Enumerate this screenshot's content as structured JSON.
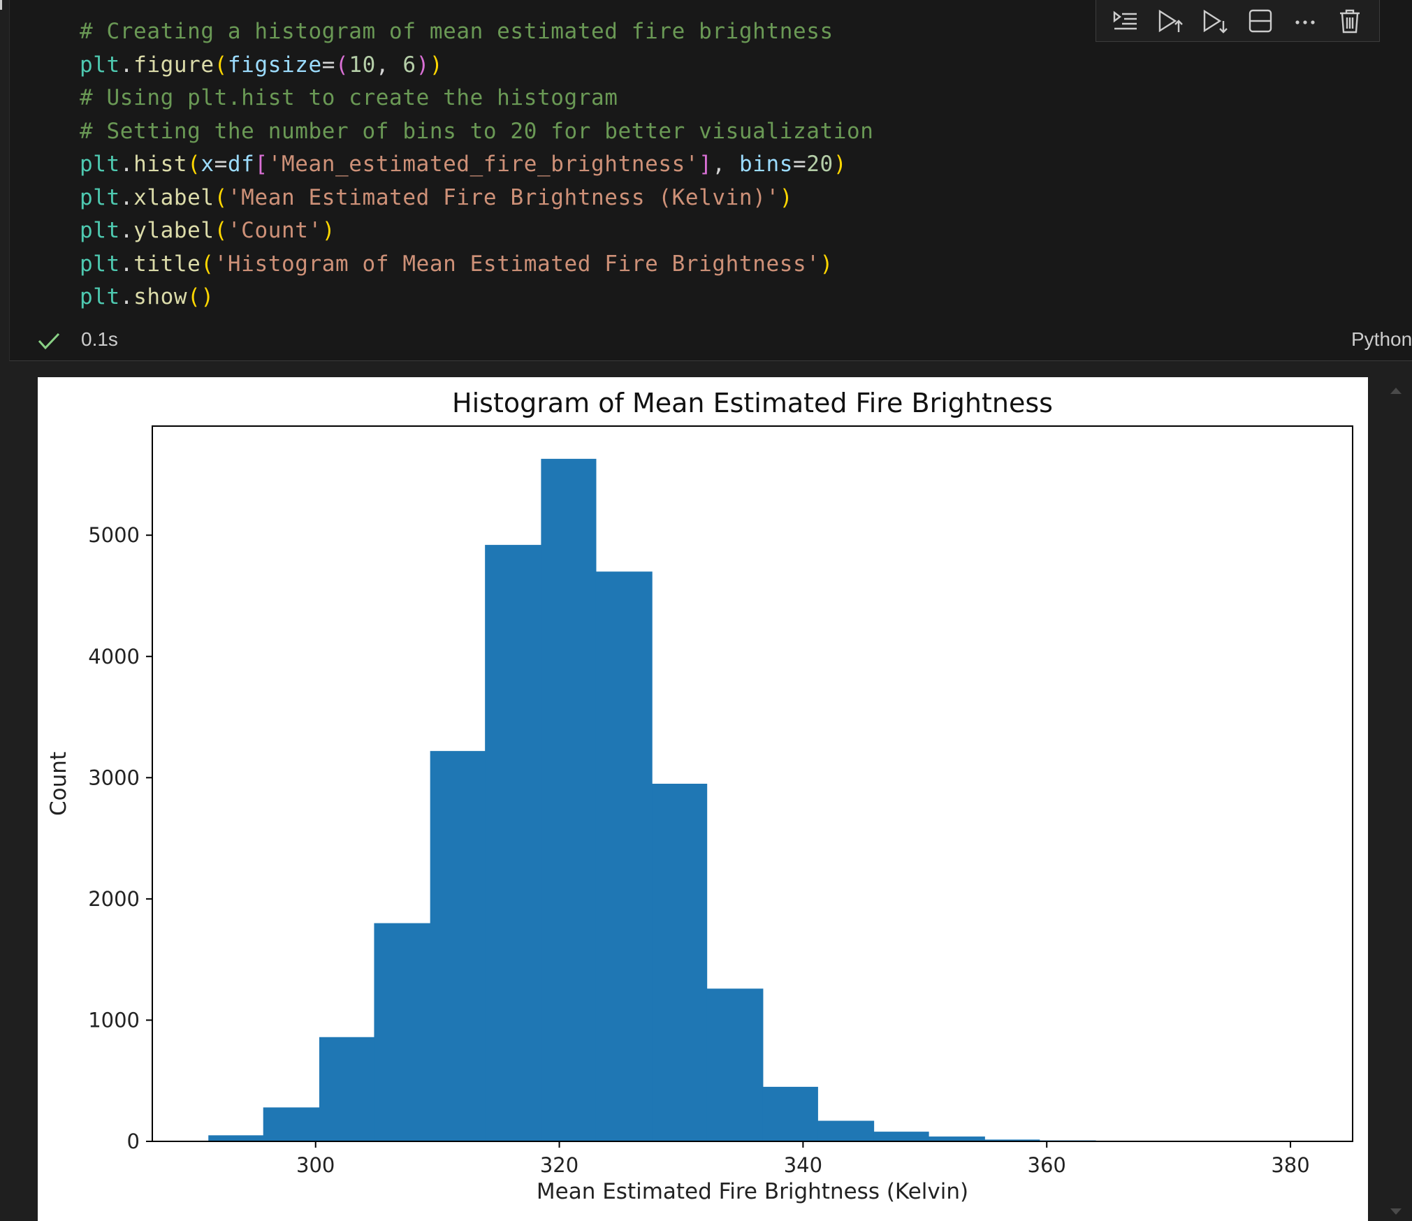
{
  "code_lines": [
    [
      {
        "t": "# Creating a histogram of mean estimated fire brightness",
        "c": "com"
      }
    ],
    [
      {
        "t": "plt",
        "c": "var"
      },
      {
        "t": ".",
        "c": "op"
      },
      {
        "t": "figure",
        "c": "fn"
      },
      {
        "t": "(",
        "c": "p1"
      },
      {
        "t": "figsize",
        "c": "prm"
      },
      {
        "t": "=",
        "c": "op"
      },
      {
        "t": "(",
        "c": "p2"
      },
      {
        "t": "10",
        "c": "num"
      },
      {
        "t": ", ",
        "c": "op"
      },
      {
        "t": "6",
        "c": "num"
      },
      {
        "t": ")",
        "c": "p2"
      },
      {
        "t": ")",
        "c": "p1"
      }
    ],
    [
      {
        "t": "# Using plt.hist to create the histogram",
        "c": "com"
      }
    ],
    [
      {
        "t": "# Setting the number of bins to 20 for better visualization",
        "c": "com"
      }
    ],
    [
      {
        "t": "plt",
        "c": "var"
      },
      {
        "t": ".",
        "c": "op"
      },
      {
        "t": "hist",
        "c": "fn"
      },
      {
        "t": "(",
        "c": "p1"
      },
      {
        "t": "x",
        "c": "prm"
      },
      {
        "t": "=",
        "c": "op"
      },
      {
        "t": "df",
        "c": "prm"
      },
      {
        "t": "[",
        "c": "p2"
      },
      {
        "t": "'Mean_estimated_fire_brightness'",
        "c": "str"
      },
      {
        "t": "]",
        "c": "p2"
      },
      {
        "t": ", ",
        "c": "op"
      },
      {
        "t": "bins",
        "c": "prm"
      },
      {
        "t": "=",
        "c": "op"
      },
      {
        "t": "20",
        "c": "num"
      },
      {
        "t": ")",
        "c": "p1"
      }
    ],
    [
      {
        "t": "plt",
        "c": "var"
      },
      {
        "t": ".",
        "c": "op"
      },
      {
        "t": "xlabel",
        "c": "fn"
      },
      {
        "t": "(",
        "c": "p1"
      },
      {
        "t": "'Mean Estimated Fire Brightness (Kelvin)'",
        "c": "str"
      },
      {
        "t": ")",
        "c": "p1"
      }
    ],
    [
      {
        "t": "plt",
        "c": "var"
      },
      {
        "t": ".",
        "c": "op"
      },
      {
        "t": "ylabel",
        "c": "fn"
      },
      {
        "t": "(",
        "c": "p1"
      },
      {
        "t": "'Count'",
        "c": "str"
      },
      {
        "t": ")",
        "c": "p1"
      }
    ],
    [
      {
        "t": "plt",
        "c": "var"
      },
      {
        "t": ".",
        "c": "op"
      },
      {
        "t": "title",
        "c": "fn"
      },
      {
        "t": "(",
        "c": "p1"
      },
      {
        "t": "'Histogram of Mean Estimated Fire Brightness'",
        "c": "str"
      },
      {
        "t": ")",
        "c": "p1"
      }
    ],
    [
      {
        "t": "plt",
        "c": "var"
      },
      {
        "t": ".",
        "c": "op"
      },
      {
        "t": "show",
        "c": "fn"
      },
      {
        "t": "(",
        "c": "p1"
      },
      {
        "t": ")",
        "c": "p1"
      }
    ]
  ],
  "toolbar": {
    "icons": [
      "run-by-line-icon",
      "execute-above-icon",
      "execute-below-icon",
      "split-cell-icon",
      "more-actions-icon",
      "delete-cell-icon"
    ]
  },
  "status": {
    "time": "0.1s",
    "language": "Python"
  },
  "colors": {
    "bar": "#1f77b4",
    "success": "#89d185"
  },
  "chart_data": {
    "type": "bar",
    "title": "Histogram of Mean Estimated Fire Brightness",
    "xlabel": "Mean Estimated Fire Brightness (Kelvin)",
    "ylabel": "Count",
    "xlim": [
      286.6,
      385.1
    ],
    "ylim": [
      0,
      5900
    ],
    "xticks": [
      300,
      320,
      340,
      360,
      380
    ],
    "yticks": [
      0,
      1000,
      2000,
      3000,
      4000,
      5000
    ],
    "bin_edges": [
      291.2,
      295.7,
      300.3,
      304.8,
      309.4,
      313.9,
      318.5,
      323.0,
      327.6,
      332.1,
      336.7,
      341.2,
      345.8,
      350.3,
      354.9,
      359.4,
      364.0,
      368.5,
      373.1,
      377.6,
      382.2
    ],
    "values": [
      50,
      280,
      860,
      1800,
      3220,
      4920,
      5630,
      4700,
      2950,
      1260,
      450,
      170,
      80,
      40,
      15,
      8,
      5,
      0,
      0,
      2
    ]
  }
}
